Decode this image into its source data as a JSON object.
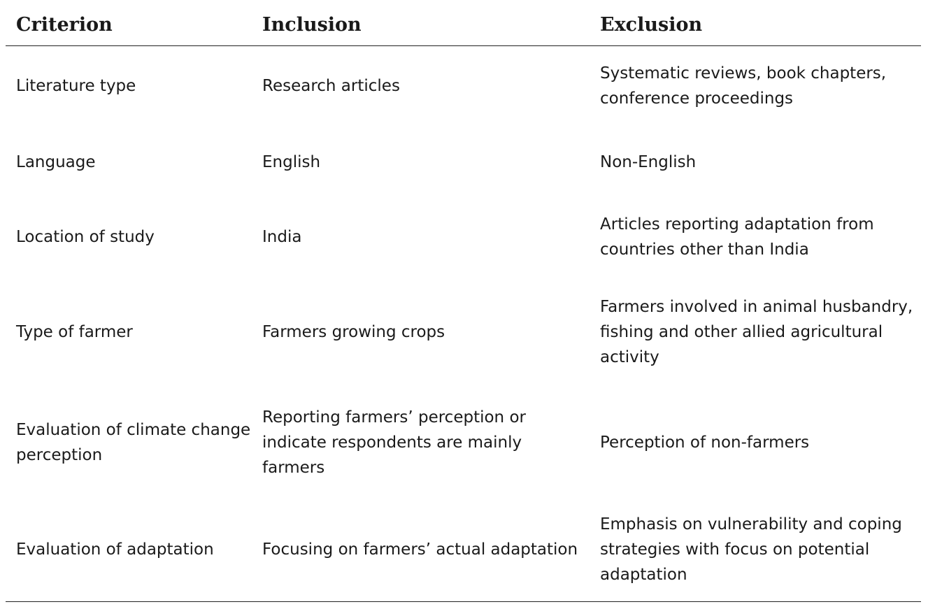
{
  "table": {
    "headers": [
      "Criterion",
      "Inclusion",
      "Exclusion"
    ],
    "rows": [
      {
        "criterion": "Literature type",
        "inclusion": "Research articles",
        "exclusion": "Systematic reviews, book chapters, conference proceedings"
      },
      {
        "criterion": "Language",
        "inclusion": "English",
        "exclusion": "Non-English"
      },
      {
        "criterion": "Location of study",
        "inclusion": "India",
        "exclusion": "Articles reporting adaptation from countries other than India"
      },
      {
        "criterion": "Type of farmer",
        "inclusion": "Farmers growing crops",
        "exclusion": "Farmers involved in animal husbandry, fishing and other allied agricultural activity"
      },
      {
        "criterion": "Evaluation of climate change perception",
        "inclusion": "Reporting farmers’ perception or indicate respondents are mainly farmers",
        "exclusion": "Perception of non-farmers"
      },
      {
        "criterion": "Evaluation of adaptation",
        "inclusion": "Focusing on farmers’ actual adaptation",
        "exclusion": "Emphasis on vulnerability and coping strategies with focus on potential adaptation"
      }
    ]
  }
}
